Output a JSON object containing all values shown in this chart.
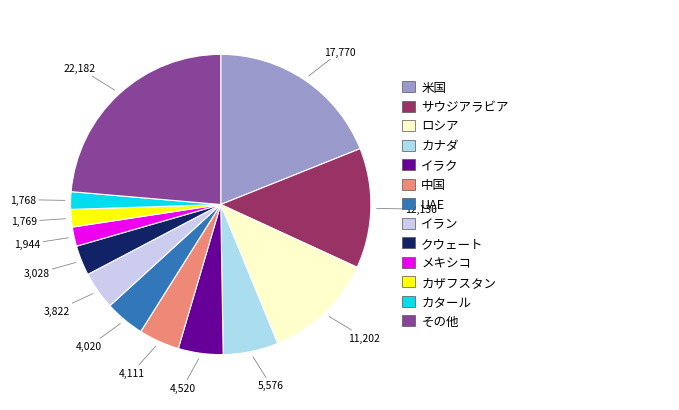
{
  "labels": [
    "米国",
    "サウジアラビア",
    "ロシア",
    "カナダ",
    "イラク",
    "中国",
    "UAE",
    "イラン",
    "クウェート",
    "メキシコ",
    "カザフスタン",
    "カタール",
    "その他"
  ],
  "values": [
    17770,
    12136,
    11202,
    5576,
    4520,
    4111,
    4020,
    3822,
    3028,
    1944,
    1769,
    1768,
    22182
  ],
  "colors": [
    "#9999cc",
    "#993366",
    "#ffffcc",
    "#aaddee",
    "#660099",
    "#ee8877",
    "#3377bb",
    "#ccccee",
    "#112266",
    "#ee00ee",
    "#ffff00",
    "#00ddee",
    "#884499"
  ],
  "labels_display": [
    "17,770",
    "12,136",
    "11,202",
    "5,576",
    "4,520",
    "4,111",
    "4,020",
    "3,822",
    "3,028",
    "1,944",
    "1,769",
    "1,768",
    "22,182"
  ],
  "background_color": "#ffffff",
  "legend_labels": [
    "米国",
    "サウジアラビア",
    "ロシア",
    "カナダ",
    "イラク",
    "中国",
    "UAE",
    "イラン",
    "クウェート",
    "メキシコ",
    "カザフスタン",
    "カタール",
    "その他"
  ]
}
